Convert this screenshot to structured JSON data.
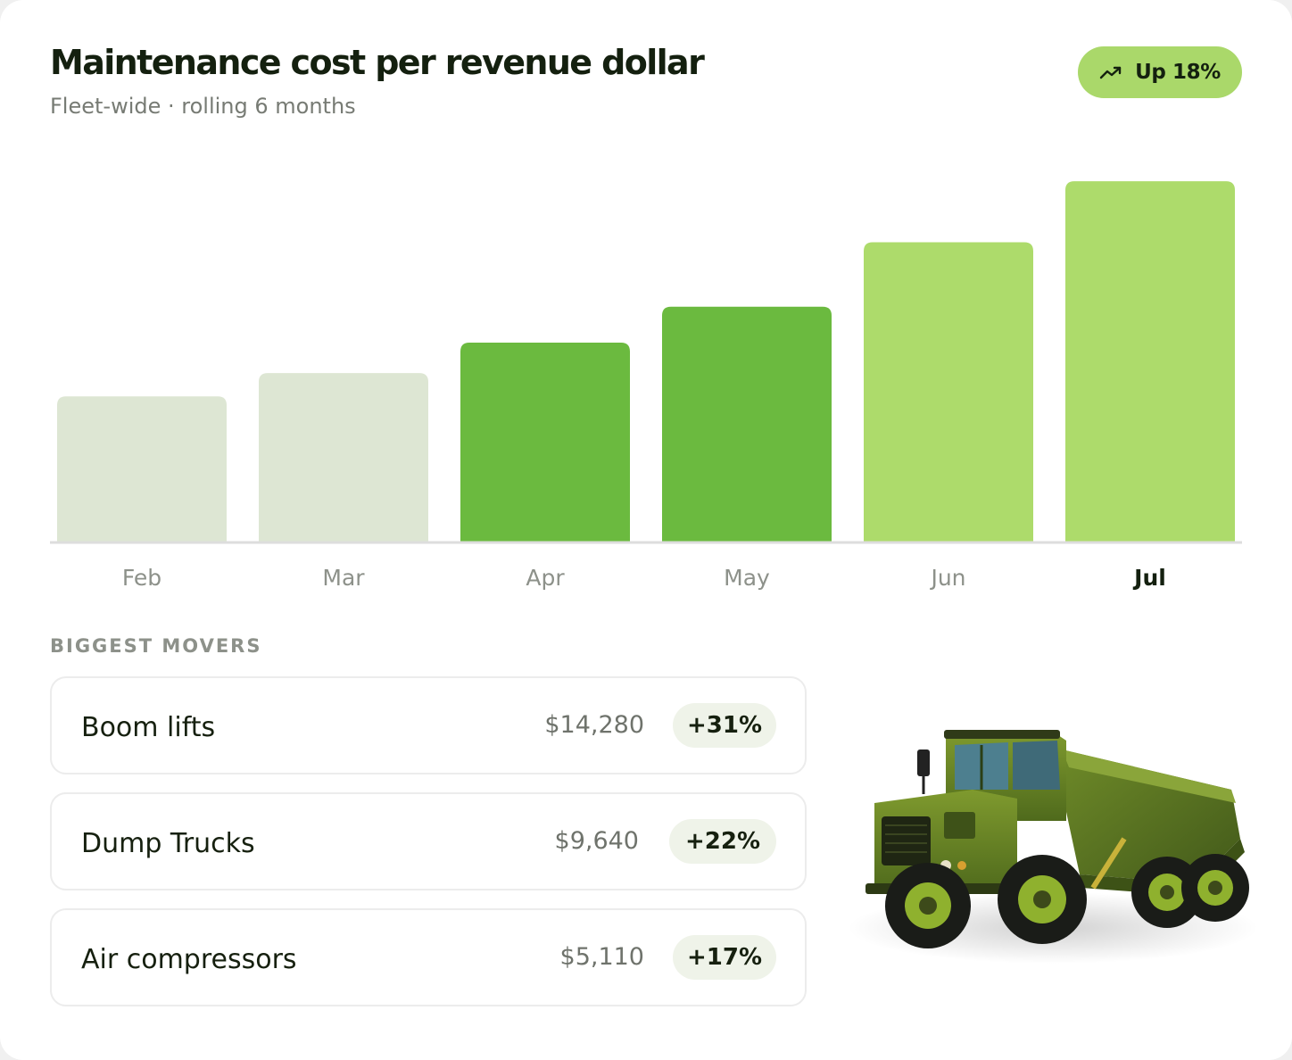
{
  "header": {
    "title": "Maintenance cost per revenue dollar",
    "subtitle": "Fleet-wide · rolling 6 months",
    "badge_label": "Up 18%",
    "badge_icon": "trending-up-icon"
  },
  "colors": {
    "bar_muted": "#dde6d3",
    "bar_strong": "#6bba3f",
    "bar_light": "#addb6b",
    "badge_bg": "#aad86a",
    "baseline": "#dddddd"
  },
  "chart_data": {
    "type": "bar",
    "title": "Maintenance cost per revenue dollar",
    "subtitle": "Fleet-wide · rolling 6 months",
    "categories": [
      "Feb",
      "Mar",
      "Apr",
      "May",
      "Jun",
      "Jul"
    ],
    "values": [
      40.5,
      47,
      55.5,
      65.5,
      83.5,
      100.5
    ],
    "bar_colors": [
      "#dde6d3",
      "#dde6d3",
      "#6bba3f",
      "#6bba3f",
      "#addb6b",
      "#addb6b"
    ],
    "highlight": "Jul",
    "ylim": [
      0,
      110
    ],
    "xlabel": "",
    "ylabel": "",
    "grid": false,
    "legend": "none"
  },
  "movers": {
    "heading": "BIGGEST MOVERS",
    "items": [
      {
        "name": "Boom lifts",
        "value": "$14,280",
        "change": "+31%"
      },
      {
        "name": "Dump Trucks",
        "value": "$9,640",
        "change": "+22%"
      },
      {
        "name": "Air compressors",
        "value": "$5,110",
        "change": "+17%"
      }
    ]
  },
  "image": {
    "icon": "dump-truck-illustration"
  }
}
